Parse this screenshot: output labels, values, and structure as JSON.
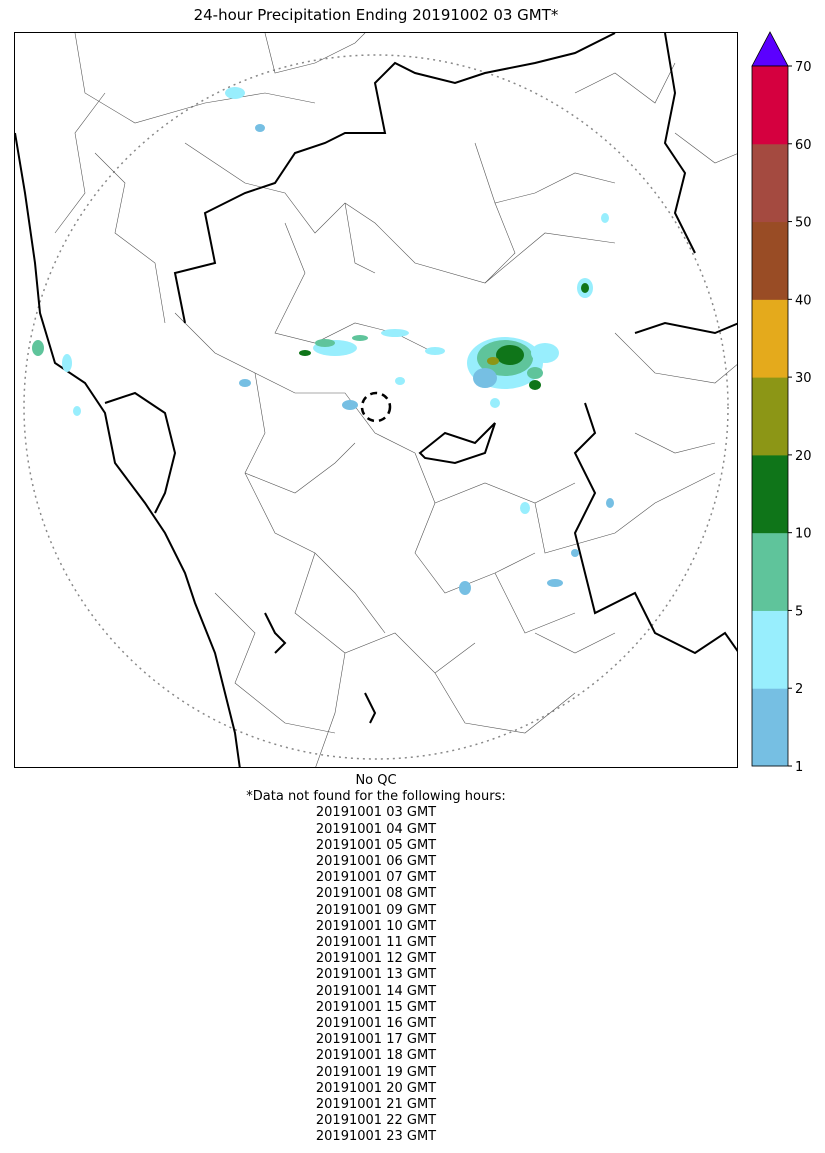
{
  "title": "24-hour Precipitation Ending 20191002 03 GMT*",
  "colorbar": {
    "ticks": [
      "1",
      "2",
      "5",
      "10",
      "20",
      "30",
      "40",
      "50",
      "60",
      "70"
    ],
    "colors": [
      "#76bfe3",
      "#98eefd",
      "#5fc49b",
      "#0f7519",
      "#8c9616",
      "#e4aa1c",
      "#994c25",
      "#a44a40",
      "#d5003f"
    ],
    "extend_color": "#5b00ff"
  },
  "map_colors": {
    "border_thick": "#000000",
    "border_thin": "#555555",
    "range_ring": "#888888"
  },
  "notes": {
    "qc": "No QC",
    "missing_header": "*Data not found for the following hours:",
    "missing_hours": [
      "20191001 03 GMT",
      "20191001 04 GMT",
      "20191001 05 GMT",
      "20191001 06 GMT",
      "20191001 07 GMT",
      "20191001 08 GMT",
      "20191001 09 GMT",
      "20191001 10 GMT",
      "20191001 11 GMT",
      "20191001 12 GMT",
      "20191001 13 GMT",
      "20191001 14 GMT",
      "20191001 15 GMT",
      "20191001 16 GMT",
      "20191001 17 GMT",
      "20191001 18 GMT",
      "20191001 19 GMT",
      "20191001 20 GMT",
      "20191001 21 GMT",
      "20191001 22 GMT",
      "20191001 23 GMT"
    ]
  }
}
